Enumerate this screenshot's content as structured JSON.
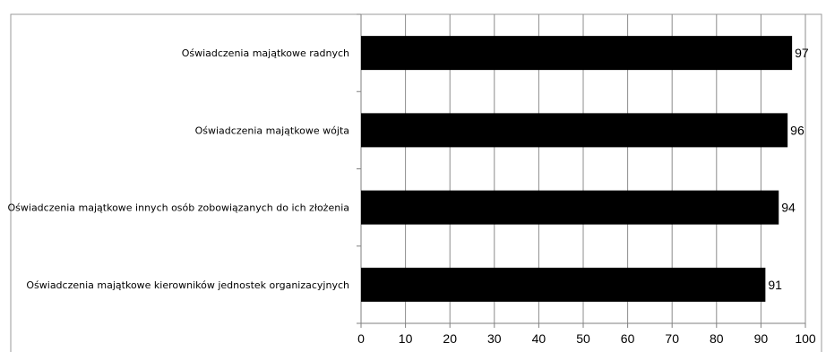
{
  "chart_data": {
    "type": "bar",
    "orientation": "horizontal",
    "title": "",
    "categories": [
      "Oświadczenia majątkowe radnych",
      "Oświadczenia majątkowe wójta",
      "Oświadczenia majątkowe innych osób zobowiązanych do ich złożenia",
      "Oświadczenia majątkowe kierowników jednostek organizacyjnych"
    ],
    "values": [
      97,
      96,
      94,
      91
    ],
    "data_labels": [
      "97",
      "96",
      "94",
      "91"
    ],
    "xlim": [
      0,
      100
    ],
    "xticks": [
      0,
      10,
      20,
      30,
      40,
      50,
      60,
      70,
      80,
      90,
      100
    ],
    "xtick_labels": [
      "0",
      "10",
      "20",
      "30",
      "40",
      "50",
      "60",
      "70",
      "80",
      "90",
      "100"
    ],
    "xlabel": "",
    "ylabel": "",
    "grid": "vertical",
    "legend": "none",
    "bar_color": "#000000",
    "grid_color": "#8c8c8c"
  }
}
